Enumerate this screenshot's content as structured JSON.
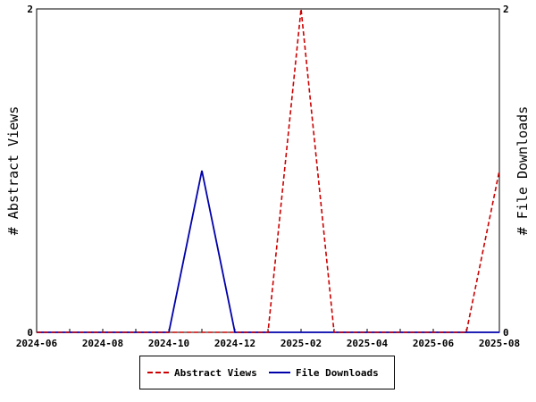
{
  "chart_data": {
    "type": "line",
    "title": "",
    "x": [
      "2024-06",
      "2024-07",
      "2024-08",
      "2024-09",
      "2024-10",
      "2024-11",
      "2024-12",
      "2025-01",
      "2025-02",
      "2025-03",
      "2025-04",
      "2025-05",
      "2025-06",
      "2025-07",
      "2025-08"
    ],
    "x_ticks": [
      "2024-06",
      "2024-08",
      "2024-10",
      "2024-12",
      "2025-02",
      "2025-04",
      "2025-06",
      "2025-08"
    ],
    "ylabel_left": "# Abstract Views",
    "ylabel_right": "# File Downloads",
    "ylim": [
      0,
      2
    ],
    "y_ticks_left": [
      "0",
      "2"
    ],
    "y_ticks_right": [
      "0",
      "2"
    ],
    "legend_position": "bottom",
    "grid": false,
    "series": [
      {
        "name": "Abstract Views",
        "axis": "left",
        "style": "dashed",
        "color": "#cc0000",
        "values": [
          0,
          0,
          0,
          0,
          0,
          0,
          0,
          0,
          2,
          0,
          0,
          0,
          0,
          0,
          1
        ]
      },
      {
        "name": "File Downloads",
        "axis": "right",
        "style": "solid",
        "color": "#0000aa",
        "values": [
          0,
          0,
          0,
          0,
          0,
          1,
          0,
          0,
          0,
          0,
          0,
          0,
          0,
          0,
          0
        ]
      }
    ]
  }
}
